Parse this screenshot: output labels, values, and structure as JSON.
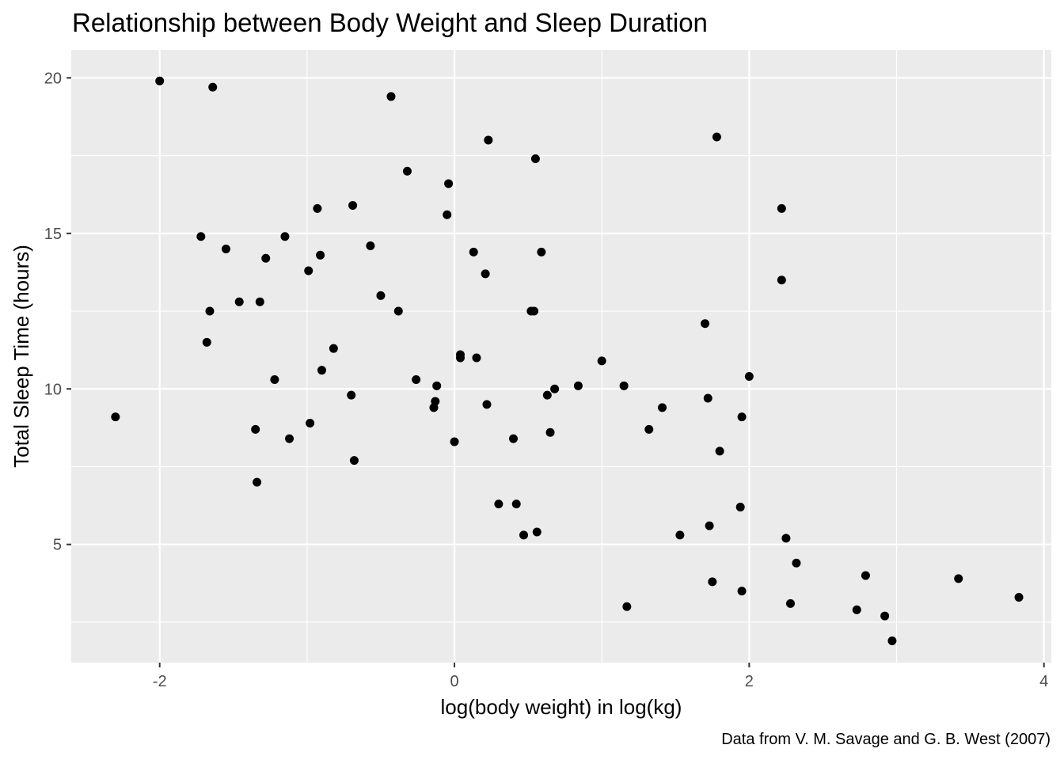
{
  "chart_data": {
    "type": "scatter",
    "title": "Relationship between Body Weight and Sleep Duration",
    "xlabel": "log(body weight) in log(kg)",
    "ylabel": "Total Sleep Time (hours)",
    "caption": "Data from V. M. Savage and G. B. West (2007)",
    "xlim": [
      -2.6,
      4.05
    ],
    "ylim": [
      1.2,
      20.9
    ],
    "x_ticks": [
      -2,
      0,
      2,
      4
    ],
    "x_tick_labels": [
      "-2",
      "0",
      "2",
      "4"
    ],
    "y_ticks": [
      5,
      10,
      15,
      20
    ],
    "y_tick_labels": [
      "5",
      "10",
      "15",
      "20"
    ],
    "grid": true,
    "legend": "none",
    "colors": {
      "panel": "#ebebeb",
      "grid": "#ffffff",
      "point": "#000000"
    },
    "points": [
      {
        "x": -2.3,
        "y": 9.1
      },
      {
        "x": -2.0,
        "y": 19.9
      },
      {
        "x": -1.64,
        "y": 19.7
      },
      {
        "x": -1.72,
        "y": 14.9
      },
      {
        "x": -1.55,
        "y": 14.5
      },
      {
        "x": -1.66,
        "y": 12.5
      },
      {
        "x": -1.68,
        "y": 11.5
      },
      {
        "x": -1.46,
        "y": 12.8
      },
      {
        "x": -1.32,
        "y": 12.8
      },
      {
        "x": -1.28,
        "y": 14.2
      },
      {
        "x": -1.15,
        "y": 14.9
      },
      {
        "x": -1.22,
        "y": 10.3
      },
      {
        "x": -1.35,
        "y": 8.7
      },
      {
        "x": -1.34,
        "y": 7.0
      },
      {
        "x": -1.12,
        "y": 8.4
      },
      {
        "x": -0.99,
        "y": 13.8
      },
      {
        "x": -0.93,
        "y": 15.8
      },
      {
        "x": -0.91,
        "y": 14.3
      },
      {
        "x": -0.9,
        "y": 10.6
      },
      {
        "x": -0.82,
        "y": 11.3
      },
      {
        "x": -0.98,
        "y": 8.9
      },
      {
        "x": -0.69,
        "y": 15.9
      },
      {
        "x": -0.7,
        "y": 9.8
      },
      {
        "x": -0.68,
        "y": 7.7
      },
      {
        "x": -0.57,
        "y": 14.6
      },
      {
        "x": -0.5,
        "y": 13.0
      },
      {
        "x": -0.43,
        "y": 19.4
      },
      {
        "x": -0.38,
        "y": 12.5
      },
      {
        "x": -0.32,
        "y": 17.0
      },
      {
        "x": -0.26,
        "y": 10.3
      },
      {
        "x": -0.12,
        "y": 10.1
      },
      {
        "x": -0.13,
        "y": 9.6
      },
      {
        "x": -0.14,
        "y": 9.4
      },
      {
        "x": -0.04,
        "y": 16.6
      },
      {
        "x": -0.05,
        "y": 15.6
      },
      {
        "x": 0.0,
        "y": 8.3
      },
      {
        "x": 0.04,
        "y": 11.1
      },
      {
        "x": 0.04,
        "y": 11.0
      },
      {
        "x": 0.13,
        "y": 14.4
      },
      {
        "x": 0.15,
        "y": 11.0
      },
      {
        "x": 0.21,
        "y": 13.7
      },
      {
        "x": 0.23,
        "y": 18.0
      },
      {
        "x": 0.22,
        "y": 9.5
      },
      {
        "x": 0.3,
        "y": 6.3
      },
      {
        "x": 0.4,
        "y": 8.4
      },
      {
        "x": 0.42,
        "y": 6.3
      },
      {
        "x": 0.47,
        "y": 5.3
      },
      {
        "x": 0.52,
        "y": 12.5
      },
      {
        "x": 0.54,
        "y": 12.5
      },
      {
        "x": 0.55,
        "y": 17.4
      },
      {
        "x": 0.56,
        "y": 5.4
      },
      {
        "x": 0.59,
        "y": 14.4
      },
      {
        "x": 0.63,
        "y": 9.8
      },
      {
        "x": 0.65,
        "y": 8.6
      },
      {
        "x": 0.68,
        "y": 10.0
      },
      {
        "x": 0.84,
        "y": 10.1
      },
      {
        "x": 1.0,
        "y": 10.9
      },
      {
        "x": 1.15,
        "y": 10.1
      },
      {
        "x": 1.17,
        "y": 3.0
      },
      {
        "x": 1.32,
        "y": 8.7
      },
      {
        "x": 1.41,
        "y": 9.4
      },
      {
        "x": 1.53,
        "y": 5.3
      },
      {
        "x": 1.7,
        "y": 12.1
      },
      {
        "x": 1.72,
        "y": 9.7
      },
      {
        "x": 1.73,
        "y": 5.6
      },
      {
        "x": 1.75,
        "y": 3.8
      },
      {
        "x": 1.78,
        "y": 18.1
      },
      {
        "x": 1.8,
        "y": 8.0
      },
      {
        "x": 1.94,
        "y": 6.2
      },
      {
        "x": 1.95,
        "y": 9.1
      },
      {
        "x": 1.95,
        "y": 3.5
      },
      {
        "x": 2.0,
        "y": 10.4
      },
      {
        "x": 2.22,
        "y": 15.8
      },
      {
        "x": 2.22,
        "y": 13.5
      },
      {
        "x": 2.25,
        "y": 5.2
      },
      {
        "x": 2.28,
        "y": 3.1
      },
      {
        "x": 2.32,
        "y": 4.4
      },
      {
        "x": 2.73,
        "y": 2.9
      },
      {
        "x": 2.79,
        "y": 4.0
      },
      {
        "x": 2.92,
        "y": 2.7
      },
      {
        "x": 2.97,
        "y": 1.9
      },
      {
        "x": 3.42,
        "y": 3.9
      },
      {
        "x": 3.83,
        "y": 3.3
      }
    ]
  }
}
